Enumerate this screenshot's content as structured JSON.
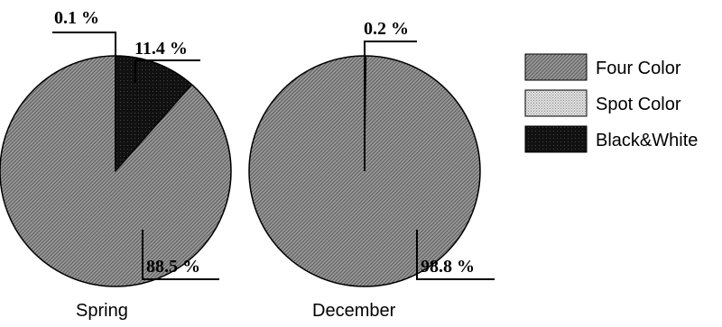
{
  "chart_data": [
    {
      "type": "pie",
      "title": "Spring",
      "slices": [
        {
          "name": "Four Color",
          "value": 88.5,
          "label": "88.5 %",
          "color": "#8f8f8f"
        },
        {
          "name": "Spot Color",
          "value": 0.1,
          "label": "0.1 %",
          "color": "#cfcfcf"
        },
        {
          "name": "Black&White",
          "value": 11.4,
          "label": "11.4 %",
          "color": "#0a0a0a"
        }
      ]
    },
    {
      "type": "pie",
      "title": "December",
      "slices": [
        {
          "name": "Four Color",
          "value": 98.8,
          "label": "98.8 %",
          "color": "#8f8f8f"
        },
        {
          "name": "Spot Color",
          "value": 0.2,
          "label": "0.2 %",
          "color": "#cfcfcf"
        },
        {
          "name": "Black&White",
          "value": 0.0,
          "label": "",
          "color": "#0a0a0a"
        }
      ]
    }
  ],
  "legend": {
    "placement": "right",
    "items": [
      {
        "label": "Four Color",
        "color": "#8f8f8f"
      },
      {
        "label": "Spot Color",
        "color": "#cfcfcf"
      },
      {
        "label": "Black&White",
        "color": "#0a0a0a"
      }
    ]
  }
}
